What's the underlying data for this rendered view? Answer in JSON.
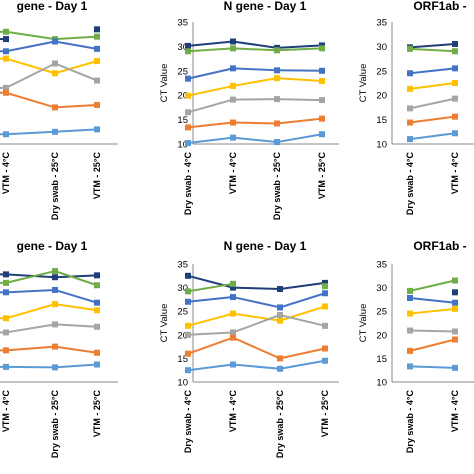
{
  "chart_data": [
    {
      "type": "line",
      "title": "gene - Day 1",
      "ylabel": "",
      "categories": [
        "VTM - 4°C",
        "Dry swab - 25°C",
        "VTM - 25°C"
      ],
      "ylim": [
        10,
        35
      ],
      "yticks": [],
      "series": [
        {
          "color": "#1f3f7a",
          "values": [
            31.5,
            null,
            33.5
          ]
        },
        {
          "color": "#70ad47",
          "values": [
            33,
            31.5,
            32
          ]
        },
        {
          "color": "#4472c4",
          "values": [
            29,
            31,
            29.5
          ]
        },
        {
          "color": "#ffc000",
          "values": [
            27.5,
            24.5,
            27
          ]
        },
        {
          "color": "#a5a5a5",
          "values": [
            21.5,
            26.5,
            23
          ]
        },
        {
          "color": "#ed7d31",
          "values": [
            20.5,
            17.5,
            18
          ]
        },
        {
          "color": "#5b9bd5",
          "values": [
            12,
            12.5,
            13
          ]
        }
      ]
    },
    {
      "type": "line",
      "title": "N gene - Day 1",
      "ylabel": "CT Value",
      "categories": [
        "Dry swab - 4°C",
        "VTM - 4°C",
        "Dry swab - 25°C",
        "VTM - 25°C"
      ],
      "ylim": [
        10,
        35
      ],
      "yticks": [
        "10",
        "15",
        "20",
        "25",
        "30",
        "35"
      ],
      "series": [
        {
          "color": "#1f3f7a",
          "values": [
            30.1,
            31,
            29.7,
            30.2
          ]
        },
        {
          "color": "#70ad47",
          "values": [
            29,
            29.6,
            29.2,
            29.6
          ]
        },
        {
          "color": "#4472c4",
          "values": [
            23.4,
            25.5,
            25.1,
            25
          ]
        },
        {
          "color": "#ffc000",
          "values": [
            19.9,
            21.9,
            23.5,
            22.9
          ]
        },
        {
          "color": "#a5a5a5",
          "values": [
            16.5,
            19.1,
            19.2,
            19
          ]
        },
        {
          "color": "#ed7d31",
          "values": [
            13.4,
            14.4,
            14.2,
            15.2
          ]
        },
        {
          "color": "#5b9bd5",
          "values": [
            10.2,
            11.3,
            10.4,
            12
          ]
        }
      ]
    },
    {
      "type": "line",
      "title": "ORF1ab -",
      "ylabel": "CT Value",
      "categories": [
        "Dry swab - 4°C",
        "VTM - 4°C"
      ],
      "ylim": [
        10,
        35
      ],
      "yticks": [
        "10",
        "15",
        "20",
        "25",
        "30",
        "35"
      ],
      "series": [
        {
          "color": "#1f3f7a",
          "values": [
            29.8,
            30.5
          ]
        },
        {
          "color": "#70ad47",
          "values": [
            29.5,
            29
          ]
        },
        {
          "color": "#4472c4",
          "values": [
            24.5,
            25.5
          ]
        },
        {
          "color": "#ffc000",
          "values": [
            21.3,
            22.5
          ]
        },
        {
          "color": "#a5a5a5",
          "values": [
            17.3,
            19.3
          ]
        },
        {
          "color": "#ed7d31",
          "values": [
            14.4,
            15.6
          ]
        },
        {
          "color": "#5b9bd5",
          "values": [
            11,
            12.2
          ]
        }
      ]
    },
    {
      "type": "line",
      "title": "gene - Day 1",
      "ylabel": "",
      "categories": [
        "VTM - 4°C",
        "Dry swab - 25°C",
        "VTM - 25°C"
      ],
      "ylim": [
        10,
        35
      ],
      "yticks": [],
      "series": [
        {
          "color": "#1f3f7a",
          "values": [
            32.8,
            32.2,
            32.6
          ]
        },
        {
          "color": "#70ad47",
          "values": [
            31,
            33.5,
            30.5
          ]
        },
        {
          "color": "#4472c4",
          "values": [
            29,
            29.5,
            26.8
          ]
        },
        {
          "color": "#ffc000",
          "values": [
            23.5,
            26.5,
            25.2
          ]
        },
        {
          "color": "#a5a5a5",
          "values": [
            20.5,
            22.2,
            21.7
          ]
        },
        {
          "color": "#ed7d31",
          "values": [
            16.7,
            17.5,
            16.2
          ]
        },
        {
          "color": "#5b9bd5",
          "values": [
            13.2,
            13.1,
            13.7
          ]
        }
      ]
    },
    {
      "type": "line",
      "title": "N gene - Day 1",
      "ylabel": "CT Value",
      "categories": [
        "Dry swab - 4°C",
        "VTM - 4°C",
        "Dry swab - 25°C",
        "VTM - 25°C"
      ],
      "ylim": [
        10,
        35
      ],
      "yticks": [
        "10",
        "15",
        "20",
        "25",
        "30",
        "35"
      ],
      "series": [
        {
          "color": "#1f3f7a",
          "values": [
            32.5,
            30,
            29.7,
            31
          ]
        },
        {
          "color": "#70ad47",
          "values": [
            29.2,
            30.8,
            null,
            30.3
          ]
        },
        {
          "color": "#4472c4",
          "values": [
            27,
            28,
            25.8,
            28.8
          ]
        },
        {
          "color": "#ffc000",
          "values": [
            21.9,
            24.5,
            23,
            26
          ]
        },
        {
          "color": "#a5a5a5",
          "values": [
            20,
            20.5,
            24.2,
            21.9
          ]
        },
        {
          "color": "#ed7d31",
          "values": [
            16,
            19.4,
            15,
            17.1
          ]
        },
        {
          "color": "#5b9bd5",
          "values": [
            12.5,
            13.7,
            12.8,
            14.5
          ]
        }
      ]
    },
    {
      "type": "line",
      "title": "ORF1ab -",
      "ylabel": "CT Value",
      "categories": [
        "Dry swab - 4°C",
        "VTM - 4°C"
      ],
      "ylim": [
        10,
        35
      ],
      "yticks": [
        "10",
        "15",
        "20",
        "25",
        "30",
        "35"
      ],
      "series": [
        {
          "color": "#1f3f7a",
          "values": [
            null,
            29
          ]
        },
        {
          "color": "#70ad47",
          "values": [
            29.3,
            31.5
          ]
        },
        {
          "color": "#4472c4",
          "values": [
            27.8,
            26.8
          ]
        },
        {
          "color": "#ffc000",
          "values": [
            24.5,
            25.5
          ]
        },
        {
          "color": "#a5a5a5",
          "values": [
            20.9,
            20.7
          ]
        },
        {
          "color": "#ed7d31",
          "values": [
            16.6,
            19
          ]
        },
        {
          "color": "#5b9bd5",
          "values": [
            13.3,
            13
          ]
        }
      ]
    }
  ]
}
